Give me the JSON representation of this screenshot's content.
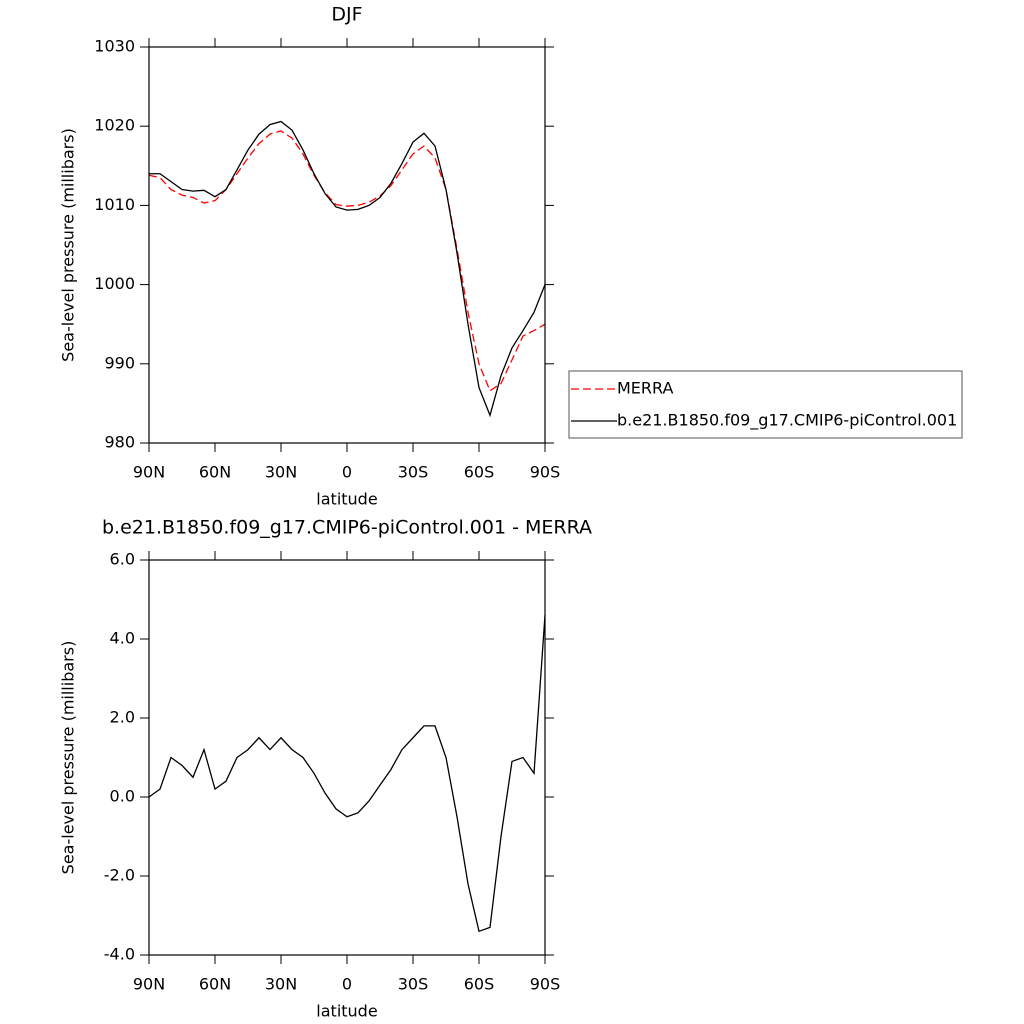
{
  "chart_data": [
    {
      "type": "line",
      "title": "DJF",
      "x_label": "latitude",
      "y_label": "Sea-level pressure (millibars)",
      "x": [
        90,
        85,
        80,
        75,
        70,
        65,
        60,
        55,
        50,
        45,
        40,
        35,
        30,
        25,
        20,
        15,
        10,
        5,
        0,
        -5,
        -10,
        -15,
        -20,
        -25,
        -30,
        -35,
        -40,
        -45,
        -50,
        -55,
        -60,
        -65,
        -70,
        -75,
        -80,
        -85,
        -90
      ],
      "series": [
        {
          "name": "MERRA",
          "color": "#ff0000",
          "dashed": true,
          "values": [
            1013.8,
            1013.5,
            1012,
            1011.3,
            1011,
            1010.3,
            1010.6,
            1012,
            1014,
            1016,
            1017.8,
            1019,
            1019.4,
            1018.5,
            1016.5,
            1013.8,
            1011.6,
            1010.1,
            1009.9,
            1010,
            1010.4,
            1011.2,
            1012.5,
            1014.5,
            1016.5,
            1017.5,
            1016,
            1012,
            1004.5,
            996.5,
            990,
            986.6,
            987.5,
            990.5,
            993.5,
            994.2,
            995
          ]
        },
        {
          "name": "b.e21.B1850.f09_g17.CMIP6-piControl.001",
          "color": "#000000",
          "dashed": false,
          "values": [
            1014,
            1014,
            1013,
            1012,
            1011.8,
            1011.9,
            1011.1,
            1012,
            1014.5,
            1017,
            1019,
            1020.2,
            1020.6,
            1019.5,
            1017,
            1014,
            1011.5,
            1009.8,
            1009.4,
            1009.5,
            1010,
            1011,
            1012.8,
            1015.3,
            1018,
            1019.1,
            1017.5,
            1012,
            1004,
            995,
            987,
            983.5,
            988.5,
            992,
            994.2,
            996.5,
            1000
          ]
        }
      ],
      "xlim": [
        90,
        -90
      ],
      "xticks": [
        {
          "value": 90,
          "label": "90N"
        },
        {
          "value": 60,
          "label": "60N"
        },
        {
          "value": 30,
          "label": "30N"
        },
        0,
        {
          "value": -30,
          "label": "30S"
        },
        {
          "value": -60,
          "label": "60S"
        },
        {
          "value": -90,
          "label": "90S"
        }
      ],
      "ylim": [
        980,
        1030
      ],
      "yticks": [
        980,
        990,
        1000,
        1010,
        1020,
        1030
      ],
      "legend": "right"
    },
    {
      "type": "line",
      "title": "b.e21.B1850.f09_g17.CMIP6-piControl.001 - MERRA",
      "x_label": "latitude",
      "y_label": "Sea-level pressure (millibars)",
      "x": [
        90,
        85,
        80,
        75,
        70,
        65,
        60,
        55,
        50,
        45,
        40,
        35,
        30,
        25,
        20,
        15,
        10,
        5,
        0,
        -5,
        -10,
        -15,
        -20,
        -25,
        -30,
        -35,
        -40,
        -45,
        -50,
        -55,
        -60,
        -65,
        -70,
        -75,
        -80,
        -85,
        -90
      ],
      "color": "#000000",
      "values": [
        0,
        0.2,
        1,
        0.8,
        0.5,
        1.2,
        0.2,
        0.4,
        1,
        1.2,
        1.5,
        1.2,
        1.5,
        1.2,
        1,
        0.6,
        0.1,
        -0.3,
        -0.5,
        -0.4,
        -0.1,
        0.3,
        0.7,
        1.2,
        1.5,
        1.8,
        1.8,
        1,
        -0.5,
        -2.2,
        -3.4,
        -3.3,
        -1,
        0.9,
        1,
        0.6,
        4.6
      ],
      "xlim": [
        90,
        -90
      ],
      "xticks": [
        {
          "value": 90,
          "label": "90N"
        },
        {
          "value": 60,
          "label": "60N"
        },
        {
          "value": 30,
          "label": "30N"
        },
        0,
        {
          "value": -30,
          "label": "30S"
        },
        {
          "value": -60,
          "label": "60S"
        },
        {
          "value": -90,
          "label": "90S"
        }
      ],
      "ylim": [
        -4,
        6
      ],
      "yticks": [
        {
          "value": -4,
          "label": "-4.0"
        },
        {
          "value": -2,
          "label": "-2.0"
        },
        {
          "value": 0,
          "label": "0.0"
        },
        {
          "value": 2,
          "label": "2.0"
        },
        {
          "value": 4,
          "label": "4.0"
        },
        {
          "value": 6,
          "label": "6.0"
        }
      ]
    }
  ]
}
